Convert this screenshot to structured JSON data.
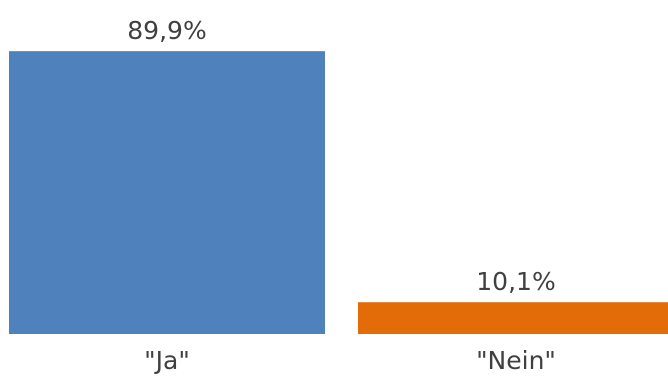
{
  "chart_data": {
    "type": "bar",
    "title": "",
    "xlabel": "",
    "ylabel": "",
    "ylim": [
      0,
      100
    ],
    "grid": false,
    "legend": "none",
    "categories": [
      "\"Ja\"",
      "\"Nein\""
    ],
    "values": [
      89.9,
      10.1
    ],
    "data_labels": [
      "89,9%",
      "10,1%"
    ],
    "colors": [
      "#4f81bd",
      "#e36c09"
    ]
  }
}
